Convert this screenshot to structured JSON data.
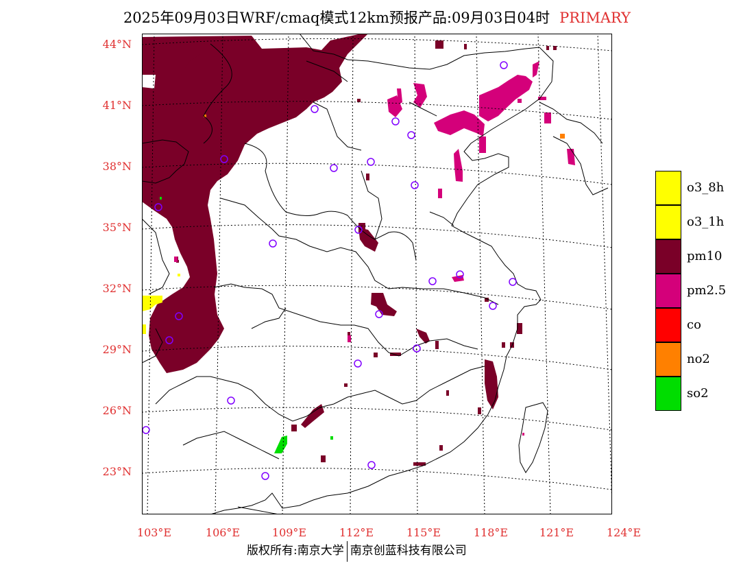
{
  "title": {
    "main": "2025年09月03日WRF/cmaq模式12km预报产品:09月03日04时",
    "tag": "PRIMARY"
  },
  "axes": {
    "lat_labels": [
      "44°N",
      "41°N",
      "38°N",
      "35°N",
      "32°N",
      "29°N",
      "26°N",
      "23°N"
    ],
    "lon_labels": [
      "103°E",
      "106°E",
      "109°E",
      "112°E",
      "115°E",
      "118°E",
      "121°E",
      "124°E"
    ]
  },
  "legend": [
    {
      "label": "o3_8h",
      "color": "#ffff00"
    },
    {
      "label": "o3_1h",
      "color": "#ffff00"
    },
    {
      "label": "pm10",
      "color": "#7a0028"
    },
    {
      "label": "pm2.5",
      "color": "#d4007a"
    },
    {
      "label": "co",
      "color": "#ff0000"
    },
    {
      "label": "no2",
      "color": "#ff8000"
    },
    {
      "label": "so2",
      "color": "#00dd00"
    }
  ],
  "footer": {
    "left": "版权所有:南京大学",
    "right": "南京创蓝科技有限公司"
  },
  "colors": {
    "pm10": "#7a0028",
    "pm25": "#d4007a",
    "o3": "#ffff00",
    "no2": "#ff8000",
    "so2": "#00dd00",
    "station": "#8000ff",
    "axis_label": "#e03030"
  }
}
